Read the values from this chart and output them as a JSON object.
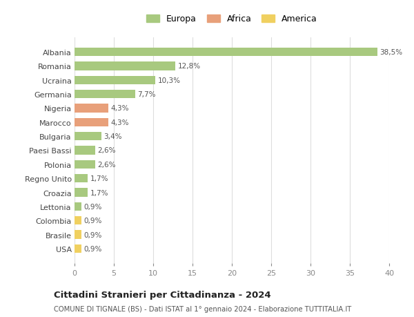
{
  "countries": [
    "Albania",
    "Romania",
    "Ucraina",
    "Germania",
    "Nigeria",
    "Marocco",
    "Bulgaria",
    "Paesi Bassi",
    "Polonia",
    "Regno Unito",
    "Croazia",
    "Lettonia",
    "Colombia",
    "Brasile",
    "USA"
  ],
  "values": [
    38.5,
    12.8,
    10.3,
    7.7,
    4.3,
    4.3,
    3.4,
    2.6,
    2.6,
    1.7,
    1.7,
    0.9,
    0.9,
    0.9,
    0.9
  ],
  "labels": [
    "38,5%",
    "12,8%",
    "10,3%",
    "7,7%",
    "4,3%",
    "4,3%",
    "3,4%",
    "2,6%",
    "2,6%",
    "1,7%",
    "1,7%",
    "0,9%",
    "0,9%",
    "0,9%",
    "0,9%"
  ],
  "continents": [
    "Europa",
    "Europa",
    "Europa",
    "Europa",
    "Africa",
    "Africa",
    "Europa",
    "Europa",
    "Europa",
    "Europa",
    "Europa",
    "Europa",
    "America",
    "America",
    "America"
  ],
  "colors": {
    "Europa": "#a8c97f",
    "Africa": "#e8a07a",
    "America": "#f0d060"
  },
  "legend_order": [
    "Europa",
    "Africa",
    "America"
  ],
  "xlim": [
    0,
    40
  ],
  "xticks": [
    0,
    5,
    10,
    15,
    20,
    25,
    30,
    35,
    40
  ],
  "title": "Cittadini Stranieri per Cittadinanza - 2024",
  "subtitle": "COMUNE DI TIGNALE (BS) - Dati ISTAT al 1° gennaio 2024 - Elaborazione TUTTITALIA.IT",
  "background_color": "#ffffff",
  "grid_color": "#dddddd",
  "bar_height": 0.6
}
